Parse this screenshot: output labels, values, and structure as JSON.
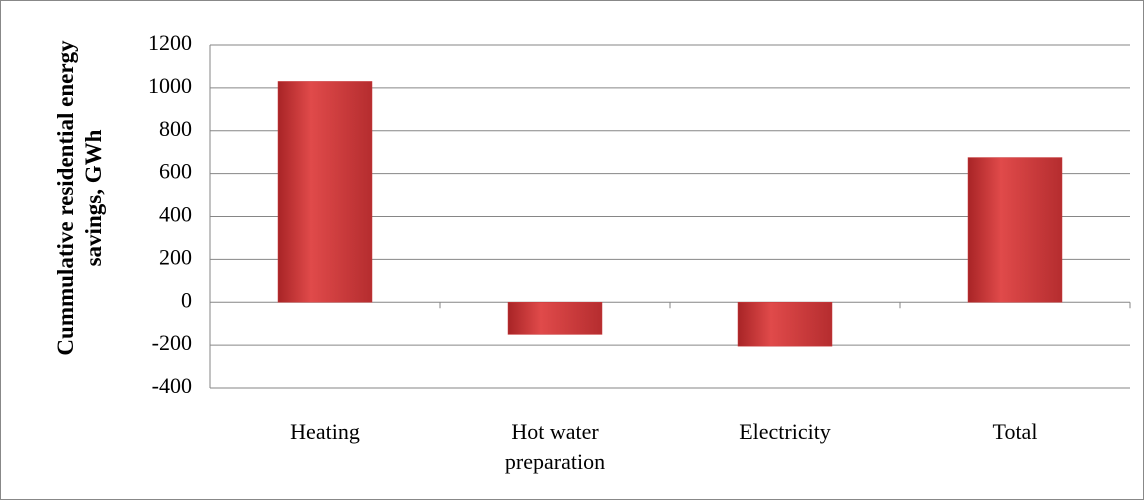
{
  "chart_data": {
    "type": "bar",
    "y_label": "Cummulative residential energy savings, GWh",
    "categories": [
      "Heating",
      "Hot water preparation",
      "Electricity",
      "Total"
    ],
    "values": [
      1030,
      -150,
      -205,
      675
    ],
    "color": "#c8393b",
    "ylim": [
      -400,
      1200
    ],
    "yticks": [
      -400,
      -200,
      0,
      200,
      400,
      600,
      800,
      1000,
      1200
    ],
    "grid": true
  }
}
